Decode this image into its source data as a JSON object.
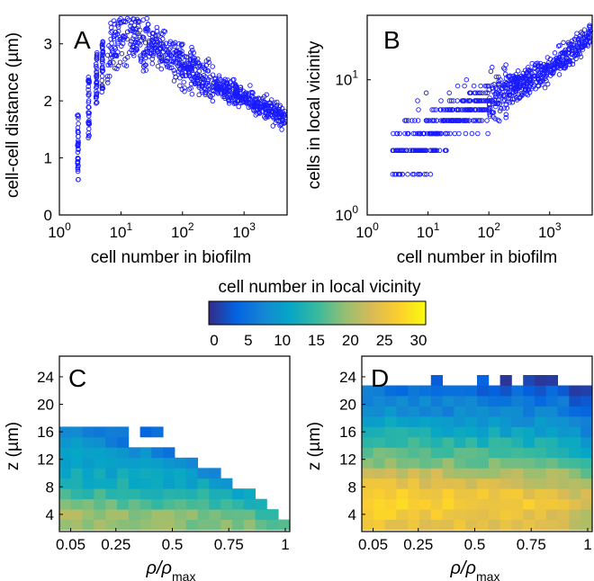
{
  "chart_data": [
    {
      "panel": "A",
      "type": "scatter",
      "xlabel": "cell number in biofilm",
      "ylabel": "cell-cell distance (µm)",
      "xscale": "log",
      "yscale": "linear",
      "xlim": [
        1,
        5000
      ],
      "ylim": [
        0,
        3.5
      ],
      "xticks": [
        {
          "value": 1,
          "base": "10",
          "exp": "0"
        },
        {
          "value": 10,
          "base": "10",
          "exp": "1"
        },
        {
          "value": 100,
          "base": "10",
          "exp": "2"
        },
        {
          "value": 1000,
          "base": "10",
          "exp": "3"
        }
      ],
      "yticks": [
        "0",
        "1",
        "2",
        "3"
      ],
      "ytick_values": [
        0,
        1,
        2,
        3
      ],
      "marker": "open circle",
      "color": "#1a1aff",
      "trend_points": [
        {
          "x": 2,
          "y": 1.2
        },
        {
          "x": 3,
          "y": 1.9
        },
        {
          "x": 4,
          "y": 2.4
        },
        {
          "x": 5,
          "y": 2.6
        },
        {
          "x": 7,
          "y": 2.9
        },
        {
          "x": 10,
          "y": 3.1
        },
        {
          "x": 15,
          "y": 3.15
        },
        {
          "x": 30,
          "y": 3.0
        },
        {
          "x": 60,
          "y": 2.8
        },
        {
          "x": 100,
          "y": 2.6
        },
        {
          "x": 300,
          "y": 2.3
        },
        {
          "x": 1000,
          "y": 2.05
        },
        {
          "x": 3000,
          "y": 1.8
        },
        {
          "x": 4500,
          "y": 1.7
        }
      ]
    },
    {
      "panel": "B",
      "type": "scatter",
      "xlabel": "cell number in biofilm",
      "ylabel": "cells in local vicinity",
      "xscale": "log",
      "yscale": "log",
      "xlim": [
        1,
        5000
      ],
      "ylim": [
        1,
        30
      ],
      "xticks": [
        {
          "value": 1,
          "base": "10",
          "exp": "0"
        },
        {
          "value": 10,
          "base": "10",
          "exp": "1"
        },
        {
          "value": 100,
          "base": "10",
          "exp": "2"
        },
        {
          "value": 1000,
          "base": "10",
          "exp": "3"
        }
      ],
      "yticks": [
        {
          "value": 1,
          "base": "10",
          "exp": "0"
        },
        {
          "value": 10,
          "base": "10",
          "exp": "1"
        }
      ],
      "marker": "open circle",
      "color": "#1a1aff",
      "trend_points": [
        {
          "x": 2.5,
          "y": 2.2
        },
        {
          "x": 5,
          "y": 3.0
        },
        {
          "x": 10,
          "y": 4.0
        },
        {
          "x": 30,
          "y": 5.5
        },
        {
          "x": 100,
          "y": 7.0
        },
        {
          "x": 300,
          "y": 9.0
        },
        {
          "x": 1000,
          "y": 12.0
        },
        {
          "x": 3000,
          "y": 18.0
        },
        {
          "x": 4500,
          "y": 22.0
        }
      ]
    },
    {
      "panel": "colorbar",
      "type": "colorbar",
      "title": "cell number in local vicinity",
      "range": [
        0,
        30
      ],
      "ticks": [
        "0",
        "5",
        "10",
        "15",
        "20",
        "25",
        "30"
      ],
      "colormap": [
        "#352a87",
        "#0363e1",
        "#1485d4",
        "#06a7c6",
        "#38b99e",
        "#92bf73",
        "#d9ba56",
        "#fcce2e",
        "#f9fb0e"
      ]
    },
    {
      "panel": "C",
      "type": "heatmap",
      "xlabel_symbol": "ρ/ρ",
      "xlabel_sub": "max",
      "ylabel": "z (µm)",
      "xticks": [
        "0.05",
        "0.25",
        "0.5",
        "0.75",
        "1"
      ],
      "xtick_values": [
        0.05,
        0.25,
        0.5,
        0.75,
        1.0
      ],
      "yticks": [
        "4",
        "8",
        "12",
        "16",
        "20",
        "24"
      ],
      "ytick_values": [
        4,
        8,
        12,
        16,
        20,
        24
      ],
      "xlim": [
        0,
        1.02
      ],
      "ylim": [
        1.5,
        27
      ],
      "ncols": 20,
      "row_z": [
        2.5,
        4.0,
        5.5,
        7.0,
        8.5,
        10.0,
        11.5,
        13.0,
        14.5,
        16.0
      ],
      "row_max_col": [
        19,
        18,
        17,
        16,
        14,
        13,
        11,
        9,
        5,
        5
      ],
      "extra_cells": [
        {
          "row": 9,
          "col": 7
        },
        {
          "row": 9,
          "col": 8
        }
      ],
      "row_values": [
        20,
        20,
        17,
        15,
        13,
        12,
        11,
        10,
        9,
        8
      ],
      "value_range": [
        0,
        30
      ]
    },
    {
      "panel": "D",
      "type": "heatmap",
      "xlabel_symbol": "ρ/ρ",
      "xlabel_sub": "max",
      "ylabel": "z (µm)",
      "xticks": [
        "0.05",
        "0.25",
        "0.5",
        "0.75",
        "1"
      ],
      "xtick_values": [
        0.05,
        0.25,
        0.5,
        0.75,
        1.0
      ],
      "yticks": [
        "4",
        "8",
        "12",
        "16",
        "20",
        "24"
      ],
      "ytick_values": [
        4,
        8,
        12,
        16,
        20,
        24
      ],
      "xlim": [
        0,
        1.02
      ],
      "ylim": [
        1.5,
        27
      ],
      "ncols": 20,
      "row_z": [
        2.5,
        4.0,
        5.5,
        7.0,
        8.5,
        10.0,
        11.5,
        13.0,
        14.5,
        16.0,
        17.5,
        19.0,
        20.5,
        22.0,
        23.5
      ],
      "row_max_col": [
        19,
        19,
        19,
        19,
        19,
        19,
        19,
        19,
        19,
        19,
        19,
        19,
        19,
        19,
        -1
      ],
      "extra_cells": [
        {
          "row": 14,
          "col": 6
        },
        {
          "row": 14,
          "col": 10
        },
        {
          "row": 14,
          "col": 12
        },
        {
          "row": 14,
          "col": 14
        },
        {
          "row": 14,
          "col": 15
        },
        {
          "row": 14,
          "col": 16
        }
      ],
      "row_values": [
        25,
        26,
        27,
        26,
        24,
        22,
        19,
        17,
        15,
        13,
        11,
        9,
        8,
        6,
        4
      ],
      "value_range": [
        0,
        30
      ]
    }
  ],
  "panel_labels": {
    "a": "A",
    "b": "B",
    "c": "C",
    "d": "D"
  }
}
